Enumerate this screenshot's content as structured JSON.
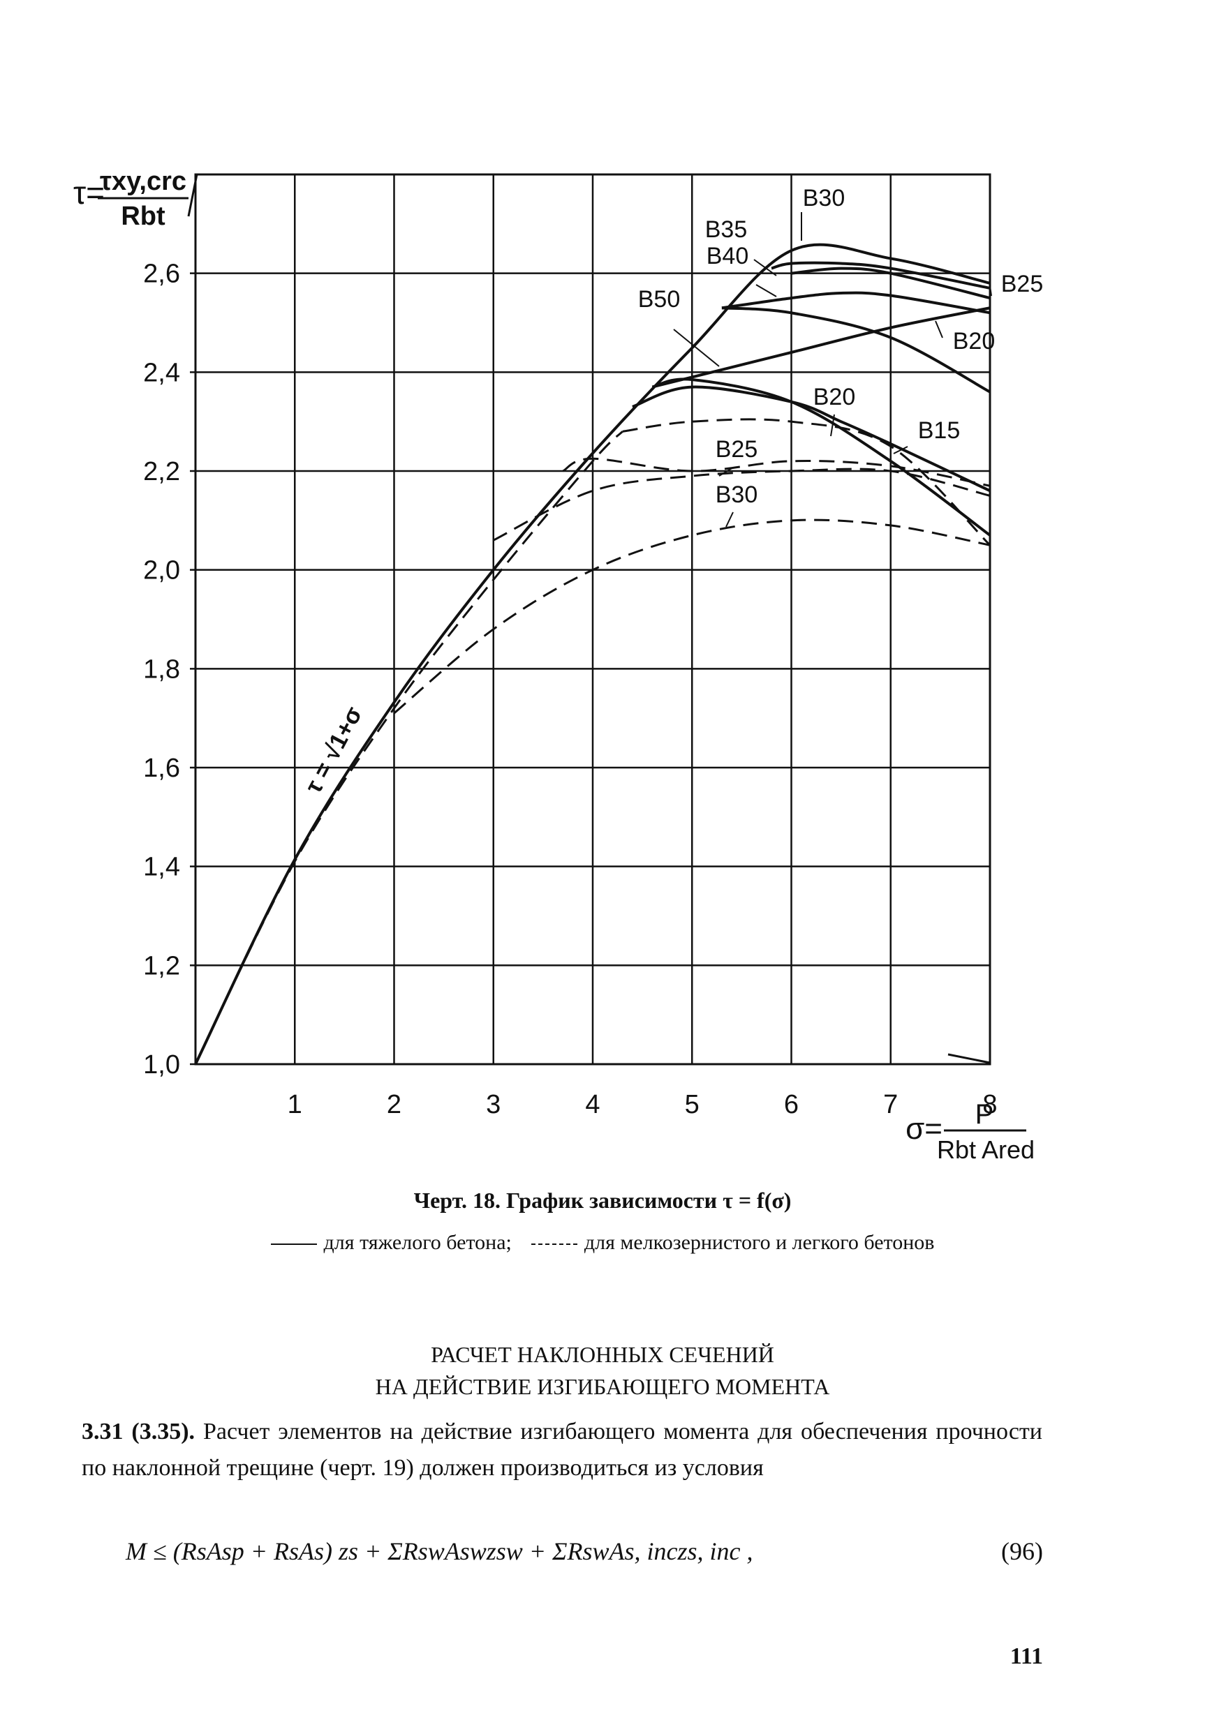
{
  "chart_data": {
    "type": "line",
    "ylabel_symbol": "τ",
    "ylabel_numerator": "τxy,crc",
    "ylabel_denominator": "Rbt",
    "xlabel_symbol": "σ",
    "xlabel_numerator": "P",
    "xlabel_denominator": "Rbt Ared",
    "xlim": [
      0,
      8
    ],
    "ylim": [
      1.0,
      2.8
    ],
    "x_ticks": [
      "1",
      "2",
      "3",
      "4",
      "5",
      "6",
      "7",
      "8"
    ],
    "y_ticks": [
      "1,0",
      "1,2",
      "1,4",
      "1,6",
      "1,8",
      "2,0",
      "2,2",
      "2,4",
      "2,6"
    ],
    "grid": true,
    "envelope_label": "τ = √1+σ",
    "series": [
      {
        "name": "B30",
        "style": "solid",
        "points": [
          [
            0,
            1.0
          ],
          [
            1,
            1.414
          ],
          [
            2,
            1.732
          ],
          [
            3,
            2.0
          ],
          [
            4,
            2.236
          ],
          [
            5,
            2.449
          ],
          [
            6,
            2.646
          ],
          [
            7,
            2.63
          ],
          [
            8,
            2.58
          ]
        ]
      },
      {
        "name": "B35",
        "style": "solid",
        "points": [
          [
            5.8,
            2.61
          ],
          [
            6,
            2.62
          ],
          [
            6.5,
            2.62
          ],
          [
            7,
            2.61
          ],
          [
            8,
            2.57
          ]
        ]
      },
      {
        "name": "B40",
        "style": "solid",
        "points": [
          [
            6,
            2.6
          ],
          [
            6.5,
            2.61
          ],
          [
            7,
            2.6
          ],
          [
            8,
            2.55
          ]
        ]
      },
      {
        "name": "B25",
        "style": "solid",
        "points": [
          [
            5.3,
            2.53
          ],
          [
            6,
            2.55
          ],
          [
            6.5,
            2.56
          ],
          [
            7,
            2.555
          ],
          [
            8,
            2.52
          ]
        ]
      },
      {
        "name": "B50",
        "style": "solid",
        "points": [
          [
            5.3,
            2.53
          ],
          [
            6,
            2.52
          ],
          [
            7,
            2.47
          ],
          [
            8,
            2.36
          ]
        ]
      },
      {
        "name": "B20",
        "style": "solid",
        "points": [
          [
            4.6,
            2.37
          ],
          [
            5,
            2.39
          ],
          [
            6,
            2.44
          ],
          [
            7,
            2.49
          ],
          [
            8,
            2.53
          ]
        ]
      },
      {
        "name": "B20",
        "style": "solid",
        "points": [
          [
            4.6,
            2.37
          ],
          [
            5,
            2.385
          ],
          [
            6,
            2.34
          ],
          [
            7,
            2.22
          ],
          [
            8,
            2.07
          ]
        ]
      },
      {
        "name": "B15",
        "style": "solid",
        "points": [
          [
            4.4,
            2.33
          ],
          [
            5,
            2.37
          ],
          [
            6,
            2.34
          ],
          [
            6.5,
            2.3
          ],
          [
            7,
            2.255
          ],
          [
            8,
            2.16
          ]
        ]
      },
      {
        "name": "B20",
        "style": "dashed",
        "points": [
          [
            4.3,
            2.28
          ],
          [
            5,
            2.3
          ],
          [
            6,
            2.3
          ],
          [
            7,
            2.25
          ],
          [
            8,
            2.05
          ]
        ]
      },
      {
        "name": "B25",
        "style": "dashed",
        "points": [
          [
            3.7,
            2.2
          ],
          [
            4,
            2.225
          ],
          [
            5,
            2.2
          ],
          [
            6,
            2.22
          ],
          [
            7,
            2.21
          ],
          [
            8,
            2.17
          ]
        ]
      },
      {
        "name": "B30",
        "style": "dashed",
        "points": [
          [
            3.0,
            2.06
          ],
          [
            4,
            2.16
          ],
          [
            5,
            2.19
          ],
          [
            6,
            2.2
          ],
          [
            7,
            2.2
          ],
          [
            8,
            2.15
          ]
        ]
      },
      {
        "name": "B30",
        "style": "dashed",
        "points": [
          [
            2,
            1.71
          ],
          [
            3,
            1.88
          ],
          [
            4,
            2.0
          ],
          [
            5,
            2.07
          ],
          [
            6,
            2.1
          ],
          [
            7,
            2.09
          ],
          [
            8,
            2.05
          ]
        ]
      },
      {
        "name": "",
        "style": "dashed",
        "points": [
          [
            0,
            1.0
          ],
          [
            1,
            1.41
          ],
          [
            2,
            1.72
          ],
          [
            3,
            1.98
          ],
          [
            4,
            2.22
          ],
          [
            4.3,
            2.28
          ]
        ]
      }
    ],
    "annotations": [
      "B30",
      "B35",
      "B40",
      "B25",
      "B50",
      "B20",
      "B20",
      "B15",
      "B25",
      "B30"
    ]
  },
  "caption": {
    "figure": "Черт. 18. График зависимости τ = f(σ)",
    "legend_solid": "для тяжелого бетона;",
    "legend_dashed": "для мелкозернистого и легкого бетонов"
  },
  "section": {
    "title_line1": "РАСЧЕТ НАКЛОННЫХ СЕЧЕНИЙ",
    "title_line2": "НА ДЕЙСТВИЕ ИЗГИБАЮЩЕГО МОМЕНТА"
  },
  "paragraph": {
    "lead": "3.31 (3.35).",
    "text": "Расчет элементов на действие изгибающего момента для обеспечения прочности по наклонной трещине (черт. 19) должен производиться из условия"
  },
  "formula": {
    "text": "M ≤ (RsAsp + RsAs) zs + ΣRswAswzsw + ΣRswAs, inczs, inc ,",
    "number": "(96)"
  },
  "page_number": "111"
}
